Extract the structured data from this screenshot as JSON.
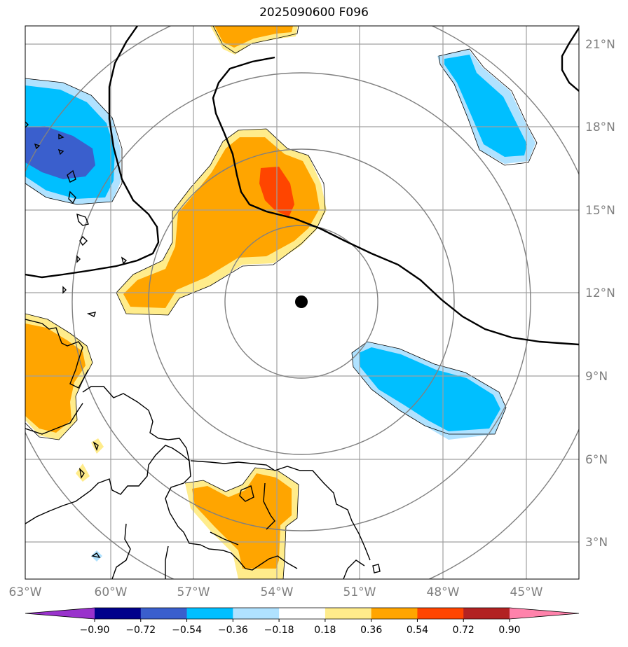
{
  "title": "2025090600 F096",
  "map": {
    "lon_labels": [
      "63°W",
      "60°W",
      "57°W",
      "54°W",
      "51°W",
      "48°W",
      "45°W"
    ],
    "lat_labels": [
      "21°N",
      "18°N",
      "15°N",
      "12°N",
      "9°N",
      "6°N",
      "3°N"
    ],
    "center_marker": {
      "lat": 11.7,
      "lon": -53.0
    },
    "range_rings": "concentric circles around storm center",
    "grid": true
  },
  "colorbar": {
    "ticks": [
      "−0.90",
      "−0.72",
      "−0.54",
      "−0.36",
      "−0.18",
      "0.18",
      "0.36",
      "0.54",
      "0.72",
      "0.90"
    ],
    "colors": [
      "#9932cc",
      "#00008b",
      "#3a5fcd",
      "#00bfff",
      "#b0e2ff",
      "#ffffff",
      "#ffec8b",
      "#ffa500",
      "#ff4500",
      "#b22222",
      "#ff82ab"
    ]
  },
  "colors": {
    "grid": "#a0a0a0",
    "ring": "#808080",
    "coast": "#000000"
  }
}
